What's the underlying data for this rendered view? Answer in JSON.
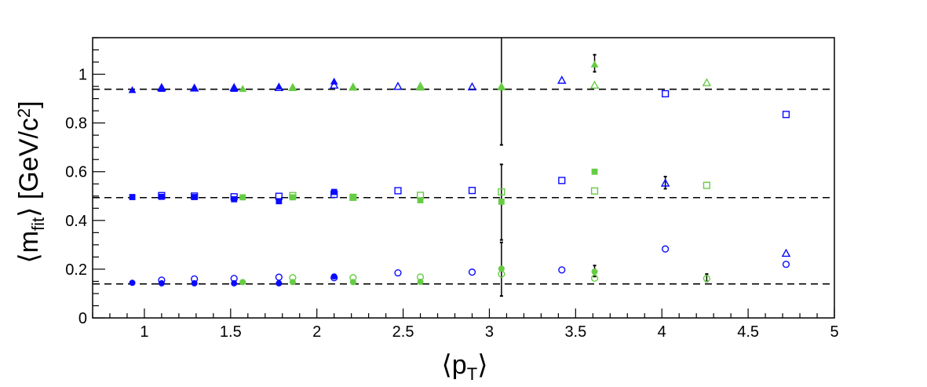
{
  "chart_data": {
    "type": "scatter",
    "title": "",
    "xlabel": "⟨p_T⟩",
    "ylabel": "⟨m_fit⟩ [GeV/c^2]",
    "xlim": [
      0.7,
      5.0
    ],
    "ylim": [
      0,
      1.15
    ],
    "grid": false,
    "legend": "none",
    "x_ticks": [
      "1",
      "1.5",
      "2",
      "2.5",
      "3",
      "3.5",
      "4",
      "4.5",
      "5"
    ],
    "y_ticks": [
      "0",
      "0.2",
      "0.4",
      "0.6",
      "0.8",
      "1"
    ],
    "reference_lines": [
      {
        "y": 0.1396,
        "style": "dashed",
        "color": "#000000"
      },
      {
        "y": 0.4937,
        "style": "dashed",
        "color": "#000000"
      },
      {
        "y": 0.9383,
        "style": "dashed",
        "color": "#000000"
      }
    ],
    "series": [
      {
        "marker": "filled-circle",
        "color": "#0a0aff",
        "points": [
          [
            0.93,
            0.144
          ],
          [
            1.1,
            0.142
          ],
          [
            1.29,
            0.142
          ],
          [
            1.52,
            0.142
          ],
          [
            1.78,
            0.142
          ],
          [
            2.1,
            0.17
          ]
        ]
      },
      {
        "marker": "open-circle",
        "color": "#0a0aff",
        "points": [
          [
            1.1,
            0.155
          ],
          [
            1.29,
            0.16
          ],
          [
            1.52,
            0.162
          ],
          [
            1.78,
            0.167
          ],
          [
            2.1,
            0.165
          ],
          [
            2.47,
            0.185
          ],
          [
            2.9,
            0.188
          ],
          [
            3.42,
            0.197
          ],
          [
            4.02,
            0.283
          ],
          [
            4.72,
            0.22
          ]
        ]
      },
      {
        "marker": "filled-circle",
        "color": "#66cc44",
        "points": [
          [
            1.57,
            0.147
          ],
          [
            1.86,
            0.147
          ],
          [
            2.21,
            0.147
          ],
          [
            2.6,
            0.148
          ],
          [
            3.07,
            0.202
          ],
          [
            3.61,
            0.19
          ]
        ]
      },
      {
        "marker": "open-circle",
        "color": "#66cc44",
        "points": [
          [
            1.86,
            0.165
          ],
          [
            2.21,
            0.165
          ],
          [
            2.6,
            0.168
          ],
          [
            3.07,
            0.18
          ],
          [
            3.61,
            0.163
          ],
          [
            4.26,
            0.162
          ]
        ]
      },
      {
        "marker": "filled-square",
        "color": "#0a0aff",
        "points": [
          [
            0.93,
            0.496
          ],
          [
            1.1,
            0.497
          ],
          [
            1.29,
            0.496
          ],
          [
            1.52,
            0.487
          ],
          [
            1.78,
            0.479
          ],
          [
            2.1,
            0.517
          ]
        ]
      },
      {
        "marker": "open-square",
        "color": "#0a0aff",
        "points": [
          [
            1.1,
            0.502
          ],
          [
            1.29,
            0.5
          ],
          [
            1.52,
            0.497
          ],
          [
            1.78,
            0.499
          ],
          [
            2.1,
            0.507
          ],
          [
            2.47,
            0.522
          ],
          [
            2.9,
            0.523
          ],
          [
            3.42,
            0.564
          ],
          [
            4.02,
            0.92
          ],
          [
            4.72,
            0.835
          ]
        ]
      },
      {
        "marker": "filled-square",
        "color": "#66cc44",
        "points": [
          [
            1.57,
            0.495
          ],
          [
            1.86,
            0.495
          ],
          [
            2.21,
            0.494
          ],
          [
            2.6,
            0.483
          ],
          [
            3.07,
            0.477
          ],
          [
            3.61,
            0.6
          ]
        ]
      },
      {
        "marker": "open-square",
        "color": "#66cc44",
        "points": [
          [
            1.86,
            0.502
          ],
          [
            2.21,
            0.495
          ],
          [
            2.6,
            0.503
          ],
          [
            3.07,
            0.517
          ],
          [
            3.61,
            0.521
          ],
          [
            4.26,
            0.544
          ]
        ]
      },
      {
        "marker": "filled-triangle",
        "color": "#0a0aff",
        "points": [
          [
            0.93,
            0.935
          ],
          [
            1.1,
            0.94
          ],
          [
            1.29,
            0.943
          ],
          [
            1.52,
            0.94
          ],
          [
            1.78,
            0.95
          ],
          [
            2.1,
            0.97
          ]
        ]
      },
      {
        "marker": "open-triangle",
        "color": "#0a0aff",
        "points": [
          [
            1.1,
            0.945
          ],
          [
            1.29,
            0.943
          ],
          [
            1.52,
            0.945
          ],
          [
            1.78,
            0.945
          ],
          [
            2.1,
            0.955
          ],
          [
            2.47,
            0.95
          ],
          [
            2.9,
            0.948
          ],
          [
            3.42,
            0.975
          ],
          [
            4.02,
            0.553
          ],
          [
            4.72,
            0.265
          ]
        ]
      },
      {
        "marker": "filled-triangle",
        "color": "#66cc44",
        "points": [
          [
            1.57,
            0.94
          ],
          [
            1.86,
            0.947
          ],
          [
            2.21,
            0.945
          ],
          [
            2.6,
            0.945
          ],
          [
            3.07,
            0.947
          ],
          [
            3.61,
            1.04
          ]
        ]
      },
      {
        "marker": "open-triangle",
        "color": "#66cc44",
        "points": [
          [
            1.86,
            0.945
          ],
          [
            2.21,
            0.947
          ],
          [
            2.6,
            0.951
          ],
          [
            3.07,
            0.948
          ],
          [
            3.61,
            0.955
          ],
          [
            4.26,
            0.965
          ]
        ]
      }
    ],
    "error_bars": [
      {
        "x": 3.07,
        "low": 0.71,
        "high": 1.16
      },
      {
        "x": 3.07,
        "low": 0.32,
        "high": 0.63
      },
      {
        "x": 3.07,
        "low": 0.09,
        "high": 0.31
      },
      {
        "x": 3.61,
        "low": 1.01,
        "high": 1.08
      },
      {
        "x": 3.61,
        "low": 0.17,
        "high": 0.215
      },
      {
        "x": 4.02,
        "low": 0.53,
        "high": 0.58
      },
      {
        "x": 4.26,
        "low": 0.15,
        "high": 0.18
      }
    ]
  }
}
